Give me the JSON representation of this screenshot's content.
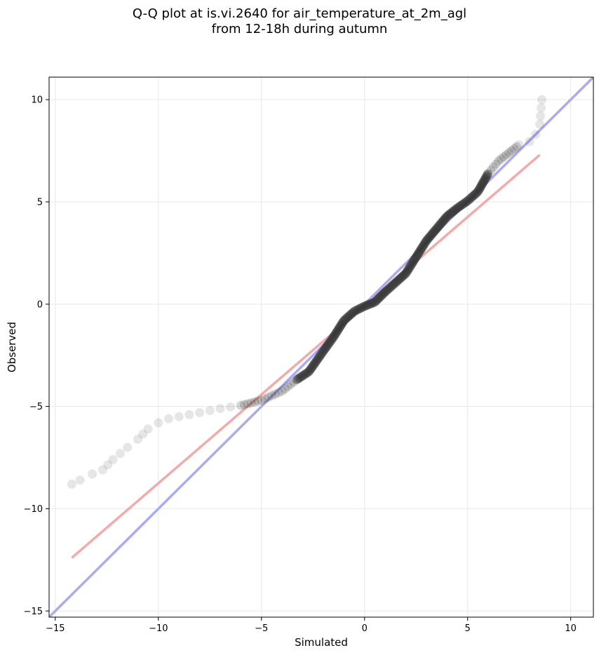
{
  "figure": {
    "title_line1": "Q-Q plot at is.vi.2640 for air_temperature_at_2m_agl",
    "title_line2": "from 12-18h during autumn"
  },
  "chart_data": {
    "type": "scatter",
    "title": "Q-Q plot at is.vi.2640 for air_temperature_at_2m_agl\nfrom 12-18h during autumn",
    "xlabel": "Simulated",
    "ylabel": "Observed",
    "xlim": [
      -15.3,
      11.1
    ],
    "ylim": [
      -15.3,
      11.1
    ],
    "xticks": [
      -15,
      -10,
      -5,
      0,
      5,
      10
    ],
    "yticks": [
      -15,
      -10,
      -5,
      0,
      5,
      10
    ],
    "xtick_labels": [
      "−15",
      "−10",
      "−5",
      "0",
      "5",
      "10"
    ],
    "ytick_labels": [
      "−15",
      "−10",
      "−5",
      "0",
      "5",
      "10"
    ],
    "grid": true,
    "colors": {
      "points": "#333333",
      "identity_line": "#aaaaf5",
      "fit_line": "#f5aaaa",
      "grid": "#ebebeb"
    },
    "quantile_curve": [
      [
        -14.2,
        -8.8
      ],
      [
        -13.8,
        -8.6
      ],
      [
        -13.2,
        -8.3
      ],
      [
        -12.7,
        -8.1
      ],
      [
        -12.2,
        -7.6
      ],
      [
        -11.5,
        -7.0
      ],
      [
        -11.0,
        -6.6
      ],
      [
        -10.5,
        -6.1
      ],
      [
        -10.0,
        -5.8
      ],
      [
        -9.5,
        -5.6
      ],
      [
        -8.5,
        -5.4
      ],
      [
        -7.0,
        -5.1
      ],
      [
        -6.0,
        -4.95
      ],
      [
        -5.0,
        -4.7
      ],
      [
        -4.0,
        -4.25
      ],
      [
        -3.3,
        -3.7
      ],
      [
        -2.7,
        -3.3
      ],
      [
        -2.0,
        -2.3
      ],
      [
        -1.5,
        -1.6
      ],
      [
        -1.0,
        -0.8
      ],
      [
        -0.5,
        -0.35
      ],
      [
        0.0,
        -0.1
      ],
      [
        0.5,
        0.1
      ],
      [
        1.0,
        0.6
      ],
      [
        1.5,
        1.05
      ],
      [
        2.0,
        1.5
      ],
      [
        2.5,
        2.3
      ],
      [
        3.0,
        3.1
      ],
      [
        3.5,
        3.7
      ],
      [
        4.0,
        4.3
      ],
      [
        4.5,
        4.7
      ],
      [
        5.0,
        5.05
      ],
      [
        5.5,
        5.5
      ],
      [
        6.0,
        6.4
      ],
      [
        6.5,
        7.0
      ],
      [
        7.0,
        7.4
      ],
      [
        7.5,
        7.8
      ],
      [
        8.0,
        7.95
      ],
      [
        8.3,
        8.3
      ],
      [
        8.5,
        8.8
      ],
      [
        8.6,
        10.0
      ]
    ],
    "identity_line": {
      "x": [
        -15.3,
        11.1
      ],
      "y": [
        -15.3,
        11.1
      ]
    },
    "fit_line": {
      "x": [
        -14.2,
        8.5
      ],
      "y": [
        -12.4,
        7.3
      ]
    }
  }
}
